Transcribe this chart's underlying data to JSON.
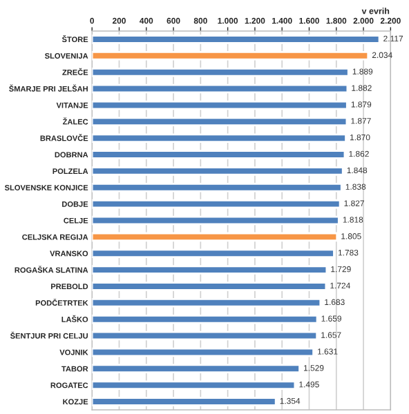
{
  "chart_data": {
    "type": "bar",
    "orientation": "horizontal",
    "xlabel": "v evrih",
    "categories": [
      "ŠTORE",
      "SLOVENIJA",
      "ZREČE",
      "ŠMARJE PRI JELŠAH",
      "VITANJE",
      "ŽALEC",
      "BRASLOVČE",
      "DOBRNA",
      "POLZELA",
      "SLOVENSKE KONJICE",
      "DOBJE",
      "CELJE",
      "CELJSKA REGIJA",
      "VRANSKO",
      "ROGAŠKA SLATINA",
      "PREBOLD",
      "PODČETRTEK",
      "LAŠKO",
      "ŠENTJUR PRI CELJU",
      "VOJNIK",
      "TABOR",
      "ROGATEC",
      "KOZJE"
    ],
    "values": [
      2117,
      2034,
      1889,
      1882,
      1879,
      1877,
      1870,
      1862,
      1848,
      1838,
      1827,
      1818,
      1805,
      1783,
      1729,
      1724,
      1683,
      1659,
      1657,
      1631,
      1529,
      1495,
      1354
    ],
    "value_labels": [
      "2.117",
      "2.034",
      "1.889",
      "1.882",
      "1.879",
      "1.877",
      "1.870",
      "1.862",
      "1.848",
      "1.838",
      "1.827",
      "1.818",
      "1.805",
      "1.783",
      "1.729",
      "1.724",
      "1.683",
      "1.659",
      "1.657",
      "1.631",
      "1.529",
      "1.495",
      "1.354"
    ],
    "colors": [
      "#4f81bd",
      "#f79646",
      "#4f81bd",
      "#4f81bd",
      "#4f81bd",
      "#4f81bd",
      "#4f81bd",
      "#4f81bd",
      "#4f81bd",
      "#4f81bd",
      "#4f81bd",
      "#4f81bd",
      "#f79646",
      "#4f81bd",
      "#4f81bd",
      "#4f81bd",
      "#4f81bd",
      "#4f81bd",
      "#4f81bd",
      "#4f81bd",
      "#4f81bd",
      "#4f81bd",
      "#4f81bd"
    ],
    "xlim": [
      0,
      2200
    ],
    "xticks": [
      0,
      200,
      400,
      600,
      800,
      {
        "value": 1000,
        "label": "1.000"
      },
      {
        "value": 1200,
        "label": "1.200"
      },
      {
        "value": 1400,
        "label": "1.400"
      },
      {
        "value": 1600,
        "label": "1.600"
      },
      {
        "value": 1800,
        "label": "1.800"
      },
      {
        "value": 2000,
        "label": "2.000"
      },
      {
        "value": 2200,
        "label": "2.200"
      }
    ],
    "grid": "x"
  }
}
